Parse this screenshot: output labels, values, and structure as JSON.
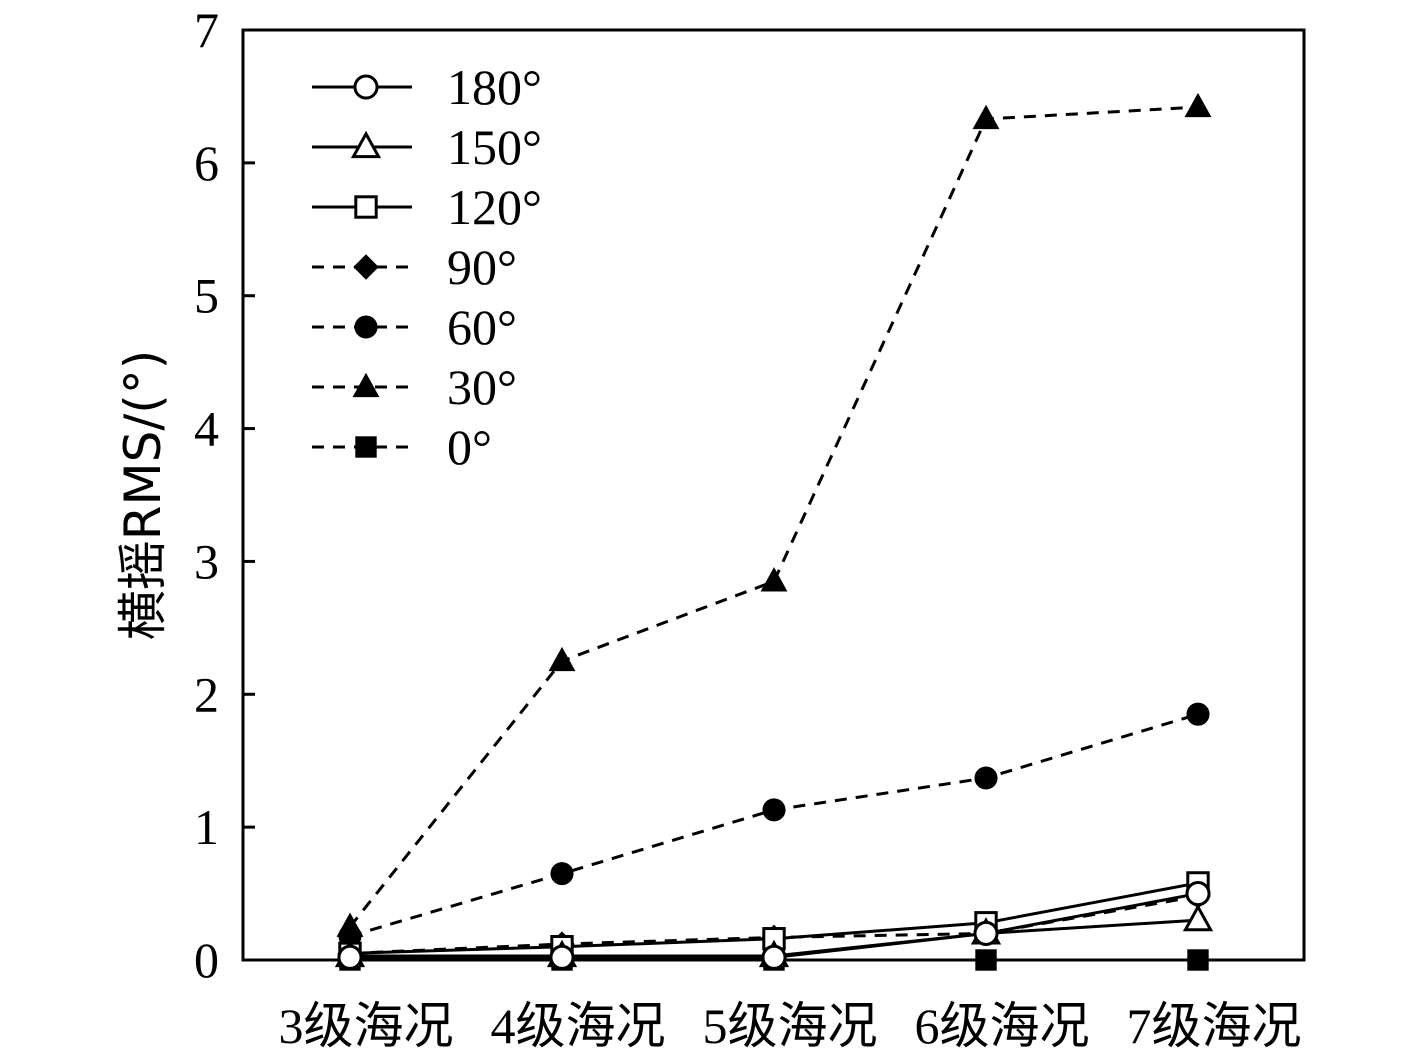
{
  "chart_data": {
    "type": "line",
    "title": "",
    "xlabel": "",
    "ylabel": "横摇RMS/(°)",
    "ylim": [
      0,
      7
    ],
    "yticks": [
      0,
      1,
      2,
      3,
      4,
      5,
      6,
      7
    ],
    "categories": [
      "3级海况",
      "4级海况",
      "5级海况",
      "6级海况",
      "7级海况"
    ],
    "grid": false,
    "legend_position": "top-left",
    "series": [
      {
        "name": "180°",
        "marker": "circle-open",
        "line": "solid",
        "values": [
          0.02,
          0.02,
          0.02,
          0.2,
          0.5
        ]
      },
      {
        "name": "150°",
        "marker": "triangle-open",
        "line": "solid",
        "values": [
          0.03,
          0.03,
          0.03,
          0.2,
          0.3
        ]
      },
      {
        "name": "120°",
        "marker": "square-open",
        "line": "solid",
        "values": [
          0.05,
          0.1,
          0.16,
          0.28,
          0.58
        ]
      },
      {
        "name": "90°",
        "marker": "diamond-filled",
        "line": "dashed",
        "values": [
          0.05,
          0.12,
          0.17,
          0.2,
          0.48
        ]
      },
      {
        "name": "60°",
        "marker": "circle-filled",
        "line": "dashed",
        "values": [
          0.18,
          0.65,
          1.13,
          1.37,
          1.85
        ]
      },
      {
        "name": "30°",
        "marker": "triangle-filled",
        "line": "dashed",
        "values": [
          0.25,
          2.25,
          2.85,
          6.33,
          6.42
        ]
      },
      {
        "name": "0°",
        "marker": "square-filled",
        "line": "dashed",
        "values": [
          0.0,
          0.0,
          0.0,
          0.0,
          0.0
        ]
      }
    ]
  }
}
